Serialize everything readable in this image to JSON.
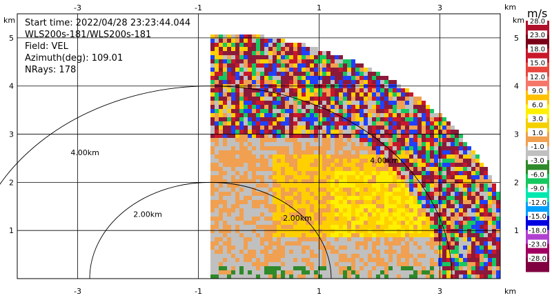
{
  "info": {
    "start_time": "Start time: 2022/04/28 23:23:44.044",
    "instrument": "WLS200s-181/WLS200s-181",
    "field": "Field: VEL",
    "azimuth": "Azimuth(deg): 109.01",
    "nrays": "NRays: 178"
  },
  "chart_data": {
    "type": "heatmap",
    "plot_kind": "RHI wind-lidar radial velocity scan",
    "x_unit": "km",
    "y_unit": "km",
    "xlim": [
      -4,
      4
    ],
    "ylim": [
      0,
      5.5
    ],
    "xticks": [
      -3,
      -1,
      1,
      3
    ],
    "yticks": [
      1,
      2,
      3,
      4,
      5
    ],
    "grid": true,
    "range_rings": [
      {
        "radius_km": 2,
        "label": "2.00km"
      },
      {
        "radius_km": 4,
        "label": "4.00km"
      }
    ],
    "scan_origin_x_km": -0.8,
    "max_range_km": 5.1,
    "colorbar": {
      "unit": "m/s",
      "ticks": [
        "28.0",
        "23.0",
        "18.0",
        "15.0",
        "12.0",
        "9.0",
        "6.0",
        "3.0",
        "1.0",
        "-1.0",
        "-3.0",
        "-6.0",
        "-9.0",
        "-12.0",
        "-15.0",
        "-18.0",
        "-23.0",
        "-28.0"
      ],
      "colors": [
        "#b0102c",
        "#7a0018",
        "#c8182a",
        "#e8473f",
        "#f5776a",
        "#ffc000",
        "#fff000",
        "#f5d000",
        "#f0a050",
        "#c0c0c0",
        "#2f8a2a",
        "#16c860",
        "#00e8b0",
        "#00a0ff",
        "#0000e0",
        "#b040d0",
        "#a00060",
        "#800040"
      ]
    }
  }
}
